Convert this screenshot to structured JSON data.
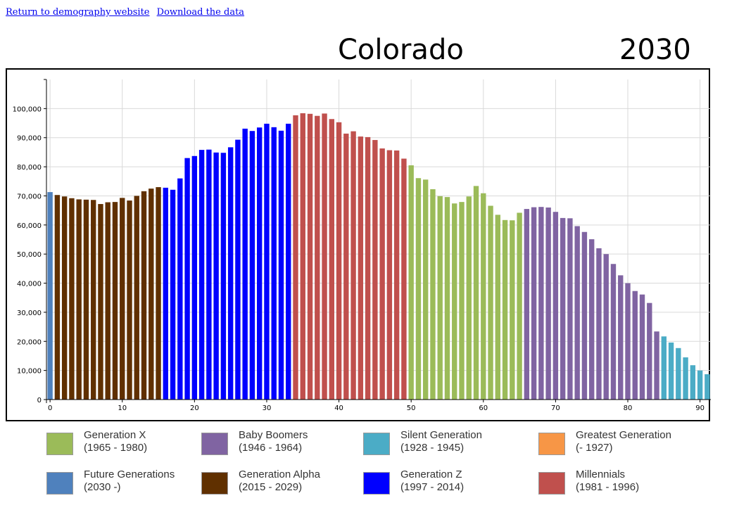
{
  "links": {
    "return_label": "Return to demography website",
    "download_label": "Download the data"
  },
  "header": {
    "state": "Colorado",
    "year": "2030"
  },
  "legend": [
    {
      "name": "Generation X",
      "range": "(1965 - 1980)",
      "color": "#9bbb59"
    },
    {
      "name": "Baby Boomers",
      "range": "(1946 - 1964)",
      "color": "#8064a2"
    },
    {
      "name": "Silent Generation",
      "range": "(1928 - 1945)",
      "color": "#4bacc6"
    },
    {
      "name": "Greatest Generation",
      "range": "(- 1927)",
      "color": "#f79646"
    },
    {
      "name": "Future Generations",
      "range": "(2030 -)",
      "color": "#4f81bd"
    },
    {
      "name": "Generation Alpha",
      "range": "(2015 - 2029)",
      "color": "#603000"
    },
    {
      "name": "Generation Z",
      "range": "(1997 - 2014)",
      "color": "#0000ff"
    },
    {
      "name": "Millennials",
      "range": "(1981 - 1996)",
      "color": "#c0504d"
    }
  ],
  "chart_data": {
    "type": "bar",
    "title": "",
    "xlabel": "",
    "ylabel": "",
    "xlim": [
      0,
      91
    ],
    "ylim": [
      0,
      110000
    ],
    "grid": true,
    "x_ticks": [
      0,
      10,
      20,
      30,
      40,
      50,
      60,
      70,
      80,
      90
    ],
    "y_ticks": [
      0,
      10000,
      20000,
      30000,
      40000,
      50000,
      60000,
      70000,
      80000,
      90000,
      100000
    ],
    "y_tick_labels": [
      "0",
      "10,000",
      "20,000",
      "30,000",
      "40,000",
      "50,000",
      "60,000",
      "70,000",
      "80,000",
      "90,000",
      "100,000"
    ],
    "x": [
      0,
      1,
      2,
      3,
      4,
      5,
      6,
      7,
      8,
      9,
      10,
      11,
      12,
      13,
      14,
      15,
      16,
      17,
      18,
      19,
      20,
      21,
      22,
      23,
      24,
      25,
      26,
      27,
      28,
      29,
      30,
      31,
      32,
      33,
      34,
      35,
      36,
      37,
      38,
      39,
      40,
      41,
      42,
      43,
      44,
      45,
      46,
      47,
      48,
      49,
      50,
      51,
      52,
      53,
      54,
      55,
      56,
      57,
      58,
      59,
      60,
      61,
      62,
      63,
      64,
      65,
      66,
      67,
      68,
      69,
      70,
      71,
      72,
      73,
      74,
      75,
      76,
      77,
      78,
      79,
      80,
      81,
      82,
      83,
      84,
      85,
      86,
      87,
      88,
      89,
      90,
      91
    ],
    "values": [
      71300,
      70300,
      69800,
      69200,
      68800,
      68700,
      68600,
      67200,
      67800,
      67900,
      69300,
      68400,
      70000,
      71600,
      72500,
      73000,
      72800,
      72100,
      76000,
      83000,
      83700,
      85800,
      85900,
      84900,
      84800,
      86700,
      89300,
      93100,
      92300,
      93500,
      94800,
      93600,
      92400,
      94800,
      97700,
      98400,
      98200,
      97500,
      98300,
      96400,
      95300,
      91400,
      92200,
      90400,
      90200,
      89200,
      86300,
      85700,
      85600,
      82800,
      80500,
      76100,
      75600,
      72300,
      69900,
      69600,
      67400,
      67900,
      69800,
      73400,
      70900,
      66600,
      63500,
      61700,
      61600,
      64200,
      65500,
      66100,
      66200,
      66000,
      64500,
      62400,
      62300,
      59600,
      57600,
      55100,
      52000,
      50000,
      46600,
      42700,
      40000,
      37300,
      36100,
      33200,
      23400,
      21700,
      19600,
      17700,
      14500,
      11800,
      10000,
      8700
    ],
    "groups": [
      {
        "name": "Future Generations",
        "color": "#4f81bd",
        "from": 0,
        "to": 0
      },
      {
        "name": "Generation Alpha",
        "color": "#603000",
        "from": 1,
        "to": 15
      },
      {
        "name": "Generation Z",
        "color": "#0000ff",
        "from": 16,
        "to": 33
      },
      {
        "name": "Millennials",
        "color": "#c0504d",
        "from": 34,
        "to": 49
      },
      {
        "name": "Generation X",
        "color": "#9bbb59",
        "from": 50,
        "to": 65
      },
      {
        "name": "Baby Boomers",
        "color": "#8064a2",
        "from": 66,
        "to": 84
      },
      {
        "name": "Silent Generation",
        "color": "#4bacc6",
        "from": 85,
        "to": 91
      }
    ]
  }
}
